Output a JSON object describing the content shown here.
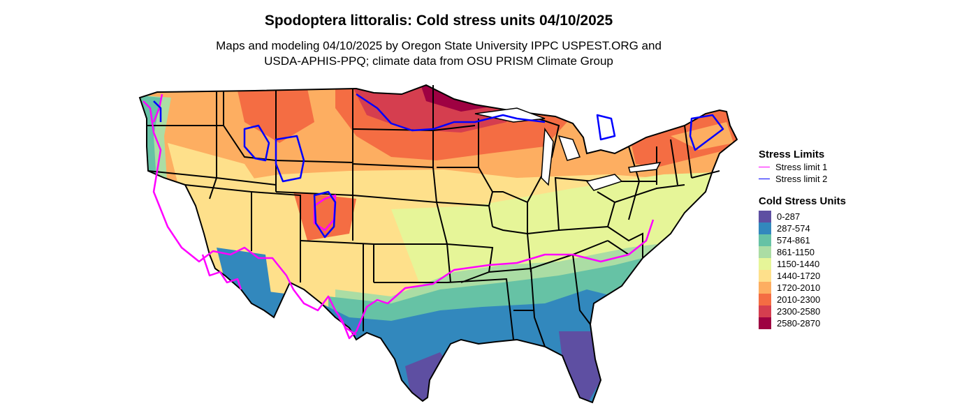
{
  "title": "Spodoptera littoralis: Cold stress units 04/10/2025",
  "subtitle_line1": "Maps and modeling 04/10/2025 by Oregon State University IPPC USPEST.ORG and",
  "subtitle_line2": "USDA-APHIS-PPQ; climate data from OSU PRISM Climate Group",
  "legend": {
    "limits_title": "Stress Limits",
    "limits": [
      {
        "label": "Stress limit 1",
        "color": "#ff00ff"
      },
      {
        "label": "Stress limit 2",
        "color": "#0000ff"
      }
    ],
    "cold_title": "Cold Stress Units",
    "classes": [
      {
        "label": "0-287",
        "color": "#5e4fa2"
      },
      {
        "label": "287-574",
        "color": "#3288bd"
      },
      {
        "label": "574-861",
        "color": "#66c2a5"
      },
      {
        "label": "861-1150",
        "color": "#abdda4"
      },
      {
        "label": "1150-1440",
        "color": "#e6f598"
      },
      {
        "label": "1440-1720",
        "color": "#fee08b"
      },
      {
        "label": "1720-2010",
        "color": "#fdae61"
      },
      {
        "label": "2010-2300",
        "color": "#f46d43"
      },
      {
        "label": "2300-2580",
        "color": "#d53e4f"
      },
      {
        "label": "2580-2870",
        "color": "#9e0142"
      }
    ]
  }
}
